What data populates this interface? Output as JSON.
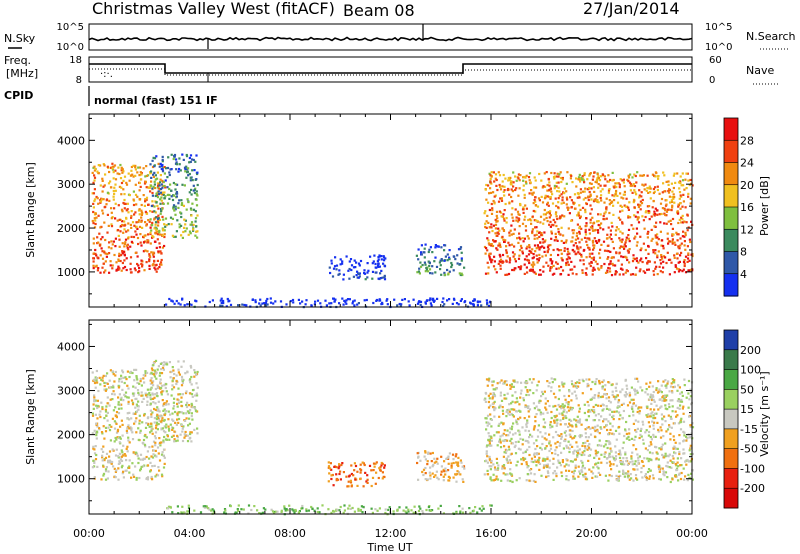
{
  "header": {
    "station": "Christmas Valley West (fitACF)",
    "beam": "Beam 08",
    "date": "27/Jan/2014"
  },
  "status_panel": {
    "nsky_label": "N.Sky",
    "nsearch_label": "N.Search",
    "nsky_ticks": [
      "10^5",
      "10^0"
    ],
    "nsearch_ticks": [
      "10^5",
      "10^0"
    ],
    "freq_label_1": "Freq.",
    "freq_label_2": "[MHz]",
    "freq_ticks": [
      "18",
      "8"
    ],
    "nave_label": "Nave",
    "nave_ticks": [
      "60",
      "0"
    ],
    "cpid_label": "CPID",
    "cpid_text": "normal (fast) 151 IF"
  },
  "chart_data": [
    {
      "type": "heatmap",
      "name": "power",
      "ylabel": "Slant Range [km]",
      "ylim": [
        200,
        4600
      ],
      "y_ticks": [
        1000,
        2000,
        3000,
        4000
      ],
      "x_ticks_hours": [
        0,
        4,
        8,
        12,
        16,
        20,
        24
      ],
      "colorbar": {
        "label": "Power [dB]",
        "tick_values": [
          4,
          8,
          12,
          16,
          20,
          24,
          28
        ],
        "tick_labels": [
          "4",
          "8",
          "12",
          "16",
          "20",
          "24",
          "28"
        ],
        "range": [
          0,
          32
        ],
        "colors": [
          "#1530f0",
          "#2f58a8",
          "#3b8a5e",
          "#7fbf3f",
          "#f0c020",
          "#f08a10",
          "#f04010",
          "#e81010"
        ]
      },
      "regions": [
        {
          "t": [
            0.1,
            3.0
          ],
          "r": [
            1000,
            3500
          ],
          "level": 0.85
        },
        {
          "t": [
            2.4,
            4.3
          ],
          "r": [
            1800,
            3700
          ],
          "level": 0.45
        },
        {
          "t": [
            9.5,
            11.8
          ],
          "r": [
            850,
            1400
          ],
          "level": 0.12
        },
        {
          "t": [
            13.0,
            14.9
          ],
          "r": [
            950,
            1650
          ],
          "level": 0.35
        },
        {
          "t": [
            15.7,
            24.0
          ],
          "r": [
            950,
            3300
          ],
          "level": 0.88
        },
        {
          "t": [
            3.0,
            16.0
          ],
          "r": [
            220,
            420
          ],
          "level": 0.1
        }
      ]
    },
    {
      "type": "heatmap",
      "name": "velocity",
      "ylabel": "Slant Range [km]",
      "xlabel": "Time UT",
      "ylim": [
        200,
        4600
      ],
      "y_ticks": [
        1000,
        2000,
        3000,
        4000
      ],
      "x_ticks_hours": [
        0,
        4,
        8,
        12,
        16,
        20,
        24
      ],
      "x_tick_labels": [
        "00:00",
        "04:00",
        "08:00",
        "12:00",
        "16:00",
        "20:00",
        "00:00"
      ],
      "colorbar": {
        "label": "Velocity [m s⁻¹]",
        "tick_values": [
          200,
          100,
          50,
          15,
          -15,
          -50,
          -100,
          -200
        ],
        "tick_labels": [
          "200",
          "100",
          "50",
          "15",
          "-15",
          "-50",
          "-100",
          "-200"
        ],
        "colors": [
          "#1f3fa8",
          "#3a7a4a",
          "#4aa844",
          "#9ad060",
          "#c8c8c0",
          "#f0a020",
          "#f07010",
          "#e82010",
          "#d80808"
        ]
      },
      "regions": [
        {
          "t": [
            0.1,
            3.0
          ],
          "r": [
            1000,
            3500
          ],
          "level": 0.5
        },
        {
          "t": [
            2.4,
            4.3
          ],
          "r": [
            1800,
            3700
          ],
          "level": 0.5
        },
        {
          "t": [
            9.5,
            11.8
          ],
          "r": [
            850,
            1400
          ],
          "level": 0.72
        },
        {
          "t": [
            13.0,
            14.9
          ],
          "r": [
            950,
            1650
          ],
          "level": 0.6
        },
        {
          "t": [
            15.7,
            24.0
          ],
          "r": [
            950,
            3300
          ],
          "level": 0.5
        },
        {
          "t": [
            3.0,
            16.0
          ],
          "r": [
            220,
            420
          ],
          "level": 0.35
        }
      ]
    }
  ]
}
